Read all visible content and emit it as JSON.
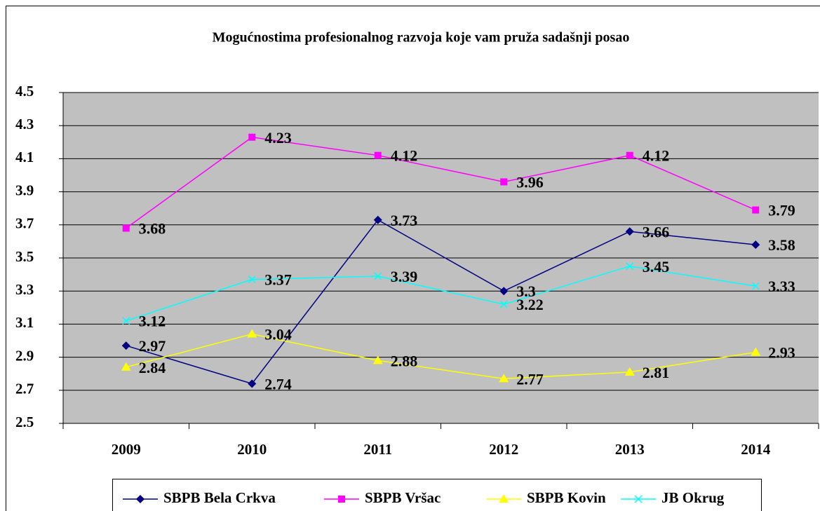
{
  "chart_data": {
    "type": "line",
    "title": "Mogućnostima profesionalnog razvoja koje vam pruža sadašnji posao",
    "categories": [
      "2009",
      "2010",
      "2011",
      "2012",
      "2013",
      "2014"
    ],
    "series": [
      {
        "name": "SBPB Bela Crkva",
        "color": "#000080",
        "marker": "diamond",
        "values": [
          2.97,
          2.74,
          3.73,
          3.3,
          3.66,
          3.58
        ]
      },
      {
        "name": "SBPB Vršac",
        "color": "#ff00ff",
        "marker": "square",
        "values": [
          3.68,
          4.23,
          4.12,
          3.96,
          4.12,
          3.79
        ]
      },
      {
        "name": "SBPB Kovin",
        "color": "#ffff00",
        "marker": "triangle",
        "values": [
          2.84,
          3.04,
          2.88,
          2.77,
          2.81,
          2.93
        ]
      },
      {
        "name": "JB Okrug",
        "color": "#00ffff",
        "marker": "x",
        "values": [
          3.12,
          3.37,
          3.39,
          3.22,
          3.45,
          3.33
        ]
      }
    ],
    "ylim": [
      2.5,
      4.5
    ],
    "yticks": [
      2.5,
      2.7,
      2.9,
      3.1,
      3.3,
      3.5,
      3.7,
      3.9,
      4.1,
      4.3,
      4.5
    ],
    "grid": true,
    "legend": "bottom",
    "plot_background": "#c0c0c0"
  }
}
